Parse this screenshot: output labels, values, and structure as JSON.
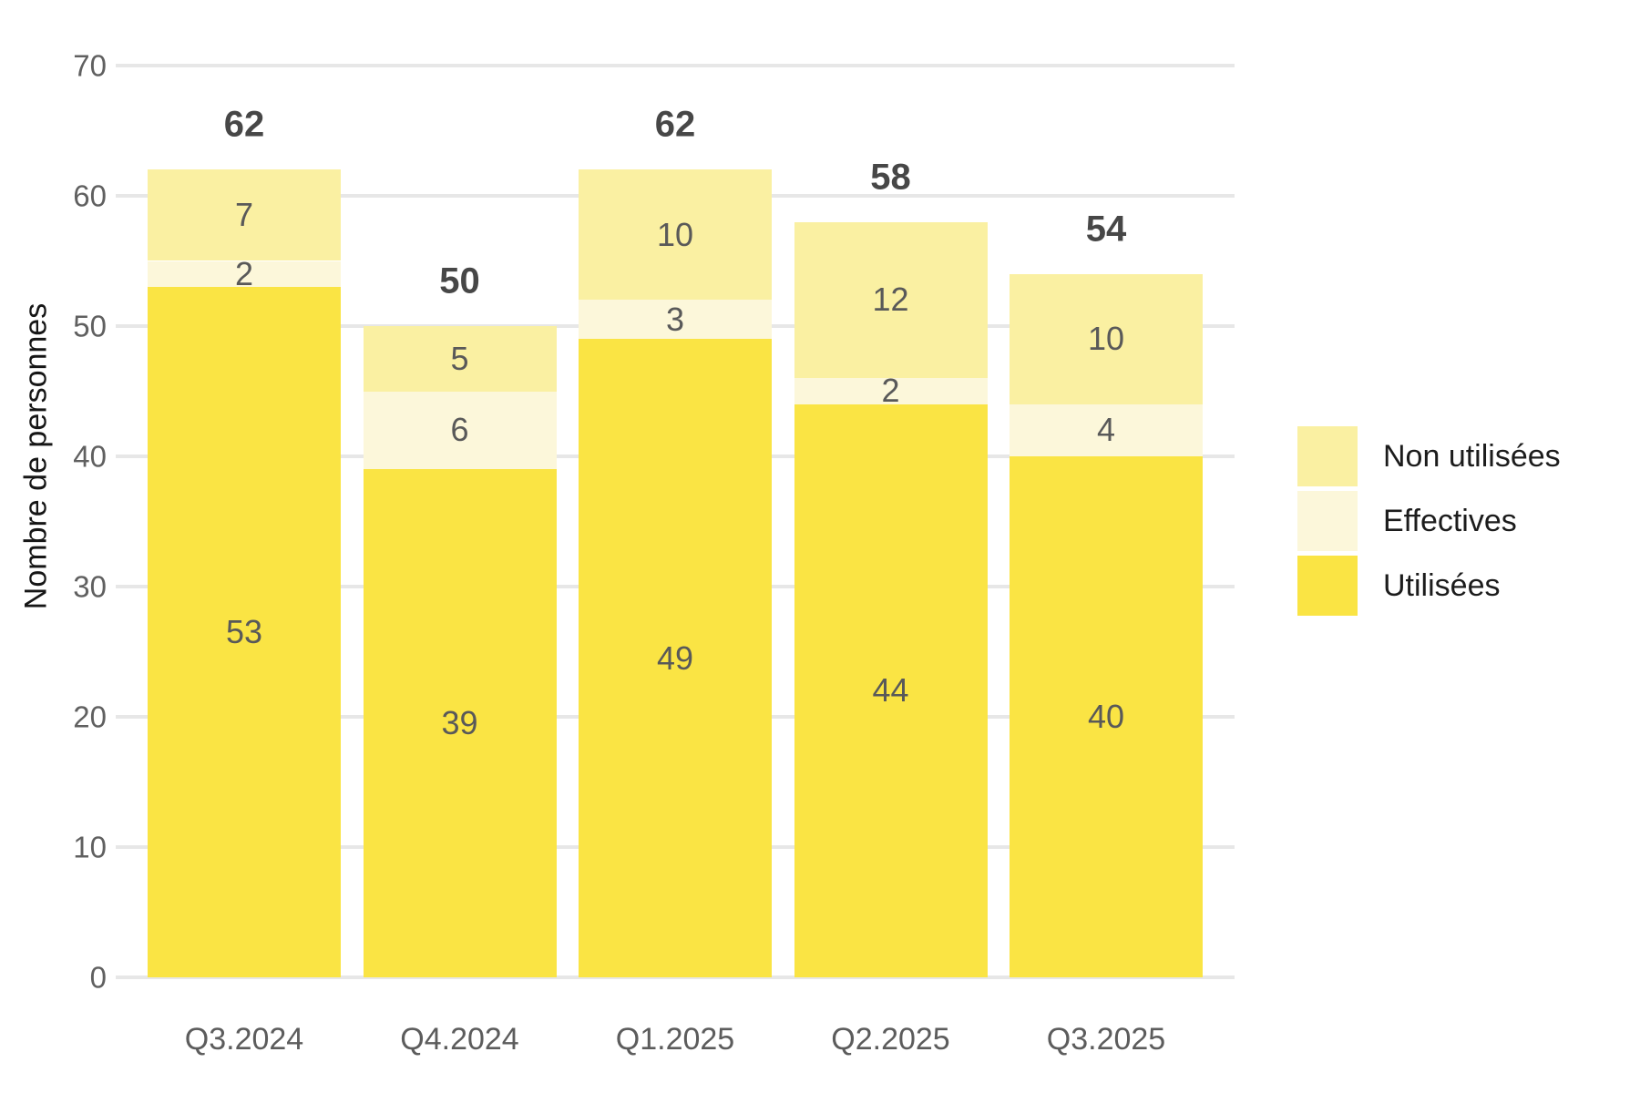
{
  "chart_data": {
    "type": "bar",
    "stacked": true,
    "categories": [
      "Q3.2024",
      "Q4.2024",
      "Q1.2025",
      "Q2.2025",
      "Q3.2025"
    ],
    "series": [
      {
        "name": "Utilisées",
        "color": "#FAE444",
        "values": [
          53,
          39,
          49,
          44,
          40
        ]
      },
      {
        "name": "Effectives",
        "color": "#FCF7DA",
        "values": [
          2,
          6,
          3,
          2,
          4
        ]
      },
      {
        "name": "Non utilisées",
        "color": "#FAF0A2",
        "values": [
          7,
          5,
          10,
          12,
          10
        ]
      }
    ],
    "totals": [
      62,
      50,
      62,
      58,
      54
    ],
    "ylabel": "Nombre de personnes",
    "ylim": [
      0,
      70
    ],
    "yticks": [
      0,
      10,
      20,
      30,
      40,
      50,
      60,
      70
    ],
    "grid": "horizontal",
    "legend_position": "right"
  },
  "legend": {
    "items": [
      {
        "label": "Non utilisées",
        "color": "#FAF0A2"
      },
      {
        "label": "Effectives",
        "color": "#FCF7DA"
      },
      {
        "label": "Utilisées",
        "color": "#FAE444"
      }
    ]
  },
  "colors": {
    "background": "#FFFFFF",
    "gridline": "#E7E7E7",
    "segment_label": "#595959",
    "total_label": "#474747",
    "tick_label": "#606060"
  }
}
